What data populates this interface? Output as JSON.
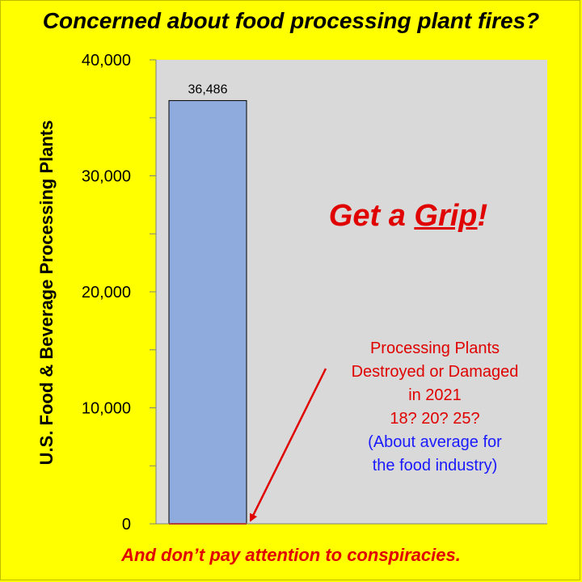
{
  "title": "Concerned about food processing plant fires?",
  "footer": "And don’t pay attention to conspiracies.",
  "chart_data": {
    "type": "bar",
    "categories": [
      ""
    ],
    "values": [
      36486
    ],
    "data_labels": [
      "36,486"
    ],
    "ylabel": "U.S. Food & Beverage Processing Plants",
    "xlabel": "",
    "ylim": [
      0,
      40000
    ],
    "y_ticks": [
      0,
      10000,
      20000,
      30000,
      40000
    ],
    "y_tick_labels": [
      "0",
      "10,000",
      "20,000",
      "30,000",
      "40,000"
    ],
    "grid": false,
    "bar_color": "#8faadc",
    "plot_background": "#d9d9d9"
  },
  "annotations": {
    "headline_before": "Get a ",
    "headline_underlined": "Grip",
    "headline_after": "!",
    "note_red": [
      "Processing Plants",
      "Destroyed or Damaged",
      "in 2021",
      "18? 20? 25?"
    ],
    "note_blue": [
      "(About average for",
      "the food industry)"
    ],
    "arrow_color": "#e00000"
  }
}
